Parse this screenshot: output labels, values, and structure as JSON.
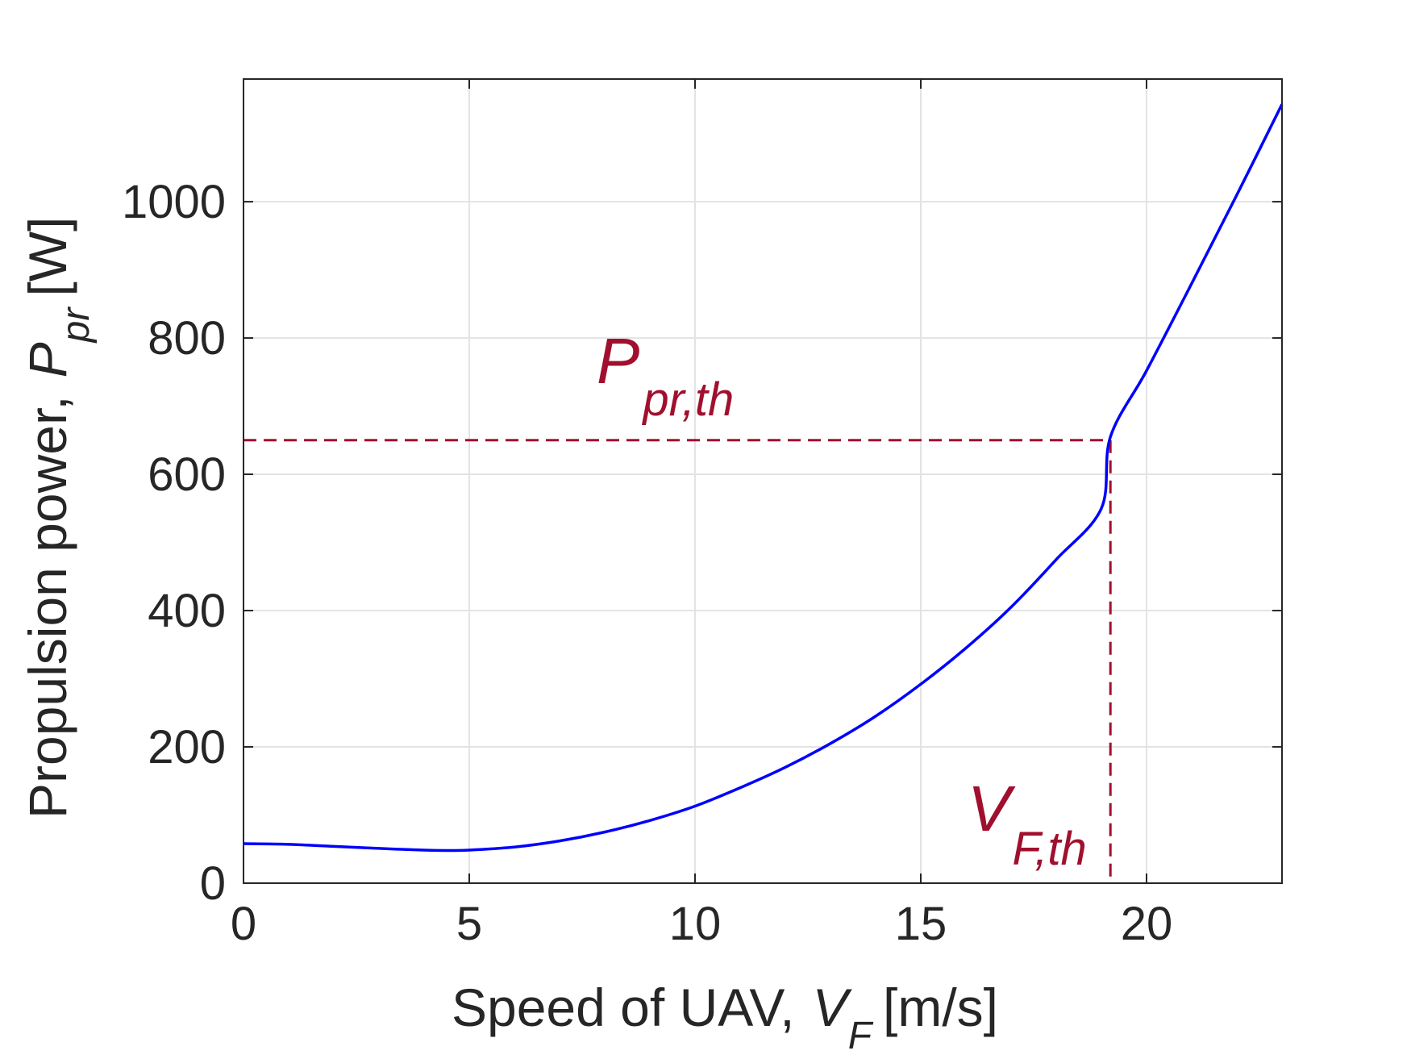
{
  "chart_data": {
    "type": "line",
    "title": "",
    "xlabel": {
      "text": "Speed of UAV,",
      "symbol": "V",
      "subscript": "F",
      "unit": "[m/s]"
    },
    "ylabel": {
      "text": "Propulsion power,",
      "symbol": "P",
      "subscript": "pr",
      "unit": "[W]"
    },
    "xlim": [
      0,
      23
    ],
    "ylim": [
      0,
      1180
    ],
    "xticks": [
      0,
      5,
      10,
      15,
      20
    ],
    "yticks": [
      0,
      200,
      400,
      600,
      800,
      1000
    ],
    "xtick_labels": [
      "0",
      "5",
      "10",
      "15",
      "20"
    ],
    "ytick_labels": [
      "0",
      "200",
      "400",
      "600",
      "800",
      "1000"
    ],
    "grid": true,
    "series": [
      {
        "name": "P_pr(V_F)",
        "color": "#0000ff",
        "x": [
          0,
          1,
          2,
          3,
          4,
          4.5,
          5,
          6,
          7,
          8,
          9,
          10,
          11,
          12,
          13,
          14,
          15,
          16,
          17,
          18,
          19,
          19.2,
          20,
          21,
          22,
          23
        ],
        "y": [
          58,
          57,
          54,
          51,
          48.5,
          48,
          48.5,
          53,
          62,
          75,
          92,
          113,
          140,
          170,
          205,
          245,
          292,
          345,
          405,
          475,
          550,
          655,
          752,
          880,
          1010,
          1143
        ]
      }
    ],
    "thresholds": {
      "color": "#a0102e",
      "power_value": 650,
      "speed_value": 19.2,
      "power_label": {
        "symbol": "P",
        "subscript": "pr,th"
      },
      "speed_label": {
        "symbol": "V",
        "subscript": "F,th"
      }
    }
  }
}
